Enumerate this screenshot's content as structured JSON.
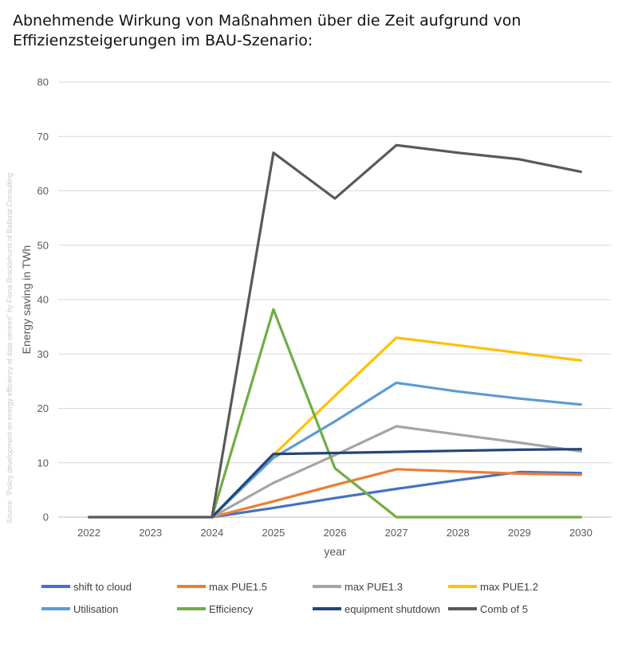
{
  "title": "Abnehmende Wirkung von Maßnahmen über die Zeit aufgrund von Effizienzsteigerungen im BAU-Szenario:",
  "source_note": "Source: \"Policy development on energy efficiency of data centres\" by Fiona Brocklehurst of Ballarat Consulting",
  "chart_data": {
    "type": "line",
    "xlabel": "year",
    "ylabel": "Energy saving in TWh",
    "categories": [
      "2022",
      "2023",
      "2024",
      "2025",
      "2026",
      "2027",
      "2028",
      "2029",
      "2030"
    ],
    "ylim": [
      0,
      80
    ],
    "yticks": [
      0,
      10,
      20,
      30,
      40,
      50,
      60,
      70,
      80
    ],
    "grid": true,
    "legend_position": "bottom",
    "series": [
      {
        "name": "shift to cloud",
        "color": "#4472C4",
        "values": [
          null,
          null,
          0,
          1.7,
          3.5,
          5.2,
          6.8,
          8.3,
          8.1
        ]
      },
      {
        "name": "max PUE1.5",
        "color": "#ED7D31",
        "values": [
          null,
          null,
          0,
          2.9,
          5.9,
          8.8,
          8.4,
          8.0,
          7.8
        ]
      },
      {
        "name": "max PUE1.3",
        "color": "#A5A5A5",
        "values": [
          null,
          null,
          0,
          6.3,
          11.4,
          16.7,
          15.2,
          13.7,
          12.1
        ]
      },
      {
        "name": "max PUE1.2",
        "color": "#FFC000",
        "values": [
          null,
          null,
          0,
          11.4,
          22.3,
          33.0,
          31.6,
          30.2,
          28.8
        ]
      },
      {
        "name": "Utilisation",
        "color": "#5B9BD5",
        "values": [
          null,
          null,
          0,
          10.9,
          17.6,
          24.7,
          23.1,
          21.8,
          20.7
        ]
      },
      {
        "name": "Efficiency",
        "color": "#70AD47",
        "values": [
          null,
          null,
          0,
          38.2,
          9.0,
          0,
          0,
          0,
          0
        ]
      },
      {
        "name": "equipment shutdown",
        "color": "#264478",
        "values": [
          null,
          null,
          0,
          11.6,
          11.8,
          12.0,
          12.2,
          12.4,
          12.5
        ]
      },
      {
        "name": "Comb of 5",
        "color": "#595959",
        "values": [
          0,
          0,
          0,
          67.0,
          58.6,
          68.4,
          67.0,
          65.8,
          63.5
        ]
      }
    ]
  }
}
